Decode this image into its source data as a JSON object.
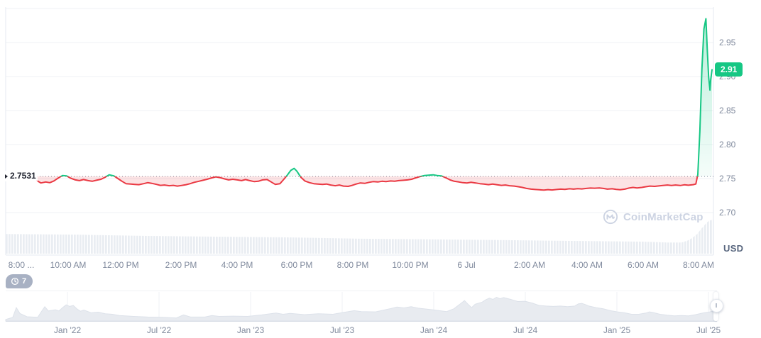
{
  "chart": {
    "unit_label": "USD",
    "watermark_text": "CoinMarketCap",
    "watchers_badge": {
      "count": "7",
      "icon": "history-clock-icon"
    },
    "colors": {
      "up": "#16c784",
      "down": "#ea3943",
      "down_fill_opacity": 0.14,
      "grid": "#eff2f5",
      "border": "#e6e9f0",
      "baseline_dots": "#7d8597",
      "tick_text": "#808a9d",
      "volume_bar": "#e9edf2",
      "nav_fill": "#e8ebf0",
      "nav_edge": "#dde2ea",
      "nav_bottom": "#d7dce5",
      "badge_bg": "#16c784",
      "watch_badge_bg": "#a8b1c3",
      "watermark": "#ccd3e2"
    }
  },
  "chart_data": {
    "type": "area",
    "title": "",
    "main": {
      "baseline_value": 2.7531,
      "baseline_label": "2.7531",
      "current_value": 2.91,
      "current_label": "2.91",
      "y_ticks": [
        "2.95",
        "2.90",
        "2.85",
        "2.80",
        "2.75",
        "2.70"
      ],
      "y_grid_values": [
        3.0,
        2.95,
        2.9,
        2.85,
        2.8,
        2.75,
        2.7
      ],
      "y_range": [
        2.6375,
        3.002
      ],
      "x_ticks": [
        {
          "label": "8:00 ...",
          "f": 0.028
        },
        {
          "label": "10:00 AM",
          "f": 0.09
        },
        {
          "label": "12:00 PM",
          "f": 0.159
        },
        {
          "label": "2:00 PM",
          "f": 0.238
        },
        {
          "label": "4:00 PM",
          "f": 0.312
        },
        {
          "label": "6:00 PM",
          "f": 0.39
        },
        {
          "label": "8:00 PM",
          "f": 0.464
        },
        {
          "label": "10:00 PM",
          "f": 0.539
        },
        {
          "label": "6 Jul",
          "f": 0.613
        },
        {
          "label": "2:00 AM",
          "f": 0.696
        },
        {
          "label": "4:00 AM",
          "f": 0.771
        },
        {
          "label": "6:00 AM",
          "f": 0.845
        },
        {
          "label": "8:00 AM",
          "f": 0.918
        }
      ],
      "series": {
        "name": "price-usd",
        "points": [
          [
            0,
            2.747
          ],
          [
            0.006,
            2.7435
          ],
          [
            0.013,
            2.745
          ],
          [
            0.019,
            2.744
          ],
          [
            0.025,
            2.7465
          ],
          [
            0.032,
            2.751
          ],
          [
            0.038,
            2.7545
          ],
          [
            0.044,
            2.754
          ],
          [
            0.05,
            2.7505
          ],
          [
            0.057,
            2.748
          ],
          [
            0.063,
            2.747
          ],
          [
            0.069,
            2.7485
          ],
          [
            0.076,
            2.747
          ],
          [
            0.082,
            2.746
          ],
          [
            0.088,
            2.7475
          ],
          [
            0.095,
            2.749
          ],
          [
            0.101,
            2.752
          ],
          [
            0.107,
            2.7555
          ],
          [
            0.114,
            2.754
          ],
          [
            0.12,
            2.75
          ],
          [
            0.126,
            2.746
          ],
          [
            0.132,
            2.7425
          ],
          [
            0.139,
            2.742
          ],
          [
            0.145,
            2.7415
          ],
          [
            0.151,
            2.741
          ],
          [
            0.158,
            2.7425
          ],
          [
            0.164,
            2.744
          ],
          [
            0.17,
            2.743
          ],
          [
            0.177,
            2.7415
          ],
          [
            0.183,
            2.74
          ],
          [
            0.189,
            2.7405
          ],
          [
            0.196,
            2.7395
          ],
          [
            0.202,
            2.74
          ],
          [
            0.208,
            2.739
          ],
          [
            0.215,
            2.74
          ],
          [
            0.221,
            2.741
          ],
          [
            0.227,
            2.7425
          ],
          [
            0.233,
            2.7445
          ],
          [
            0.24,
            2.746
          ],
          [
            0.246,
            2.7475
          ],
          [
            0.252,
            2.749
          ],
          [
            0.259,
            2.751
          ],
          [
            0.265,
            2.7525
          ],
          [
            0.271,
            2.7515
          ],
          [
            0.278,
            2.7495
          ],
          [
            0.284,
            2.748
          ],
          [
            0.29,
            2.749
          ],
          [
            0.297,
            2.748
          ],
          [
            0.303,
            2.747
          ],
          [
            0.309,
            2.7485
          ],
          [
            0.315,
            2.747
          ],
          [
            0.322,
            2.7455
          ],
          [
            0.328,
            2.746
          ],
          [
            0.334,
            2.748
          ],
          [
            0.341,
            2.7485
          ],
          [
            0.347,
            2.745
          ],
          [
            0.353,
            2.7415
          ],
          [
            0.36,
            2.7425
          ],
          [
            0.364,
            2.747
          ],
          [
            0.37,
            2.754
          ],
          [
            0.376,
            2.762
          ],
          [
            0.381,
            2.765
          ],
          [
            0.385,
            2.761
          ],
          [
            0.391,
            2.752
          ],
          [
            0.397,
            2.7465
          ],
          [
            0.404,
            2.744
          ],
          [
            0.41,
            2.7425
          ],
          [
            0.416,
            2.742
          ],
          [
            0.423,
            2.7415
          ],
          [
            0.429,
            2.742
          ],
          [
            0.435,
            2.7405
          ],
          [
            0.442,
            2.7395
          ],
          [
            0.448,
            2.7405
          ],
          [
            0.454,
            2.739
          ],
          [
            0.461,
            2.7385
          ],
          [
            0.467,
            2.74
          ],
          [
            0.473,
            2.742
          ],
          [
            0.479,
            2.7435
          ],
          [
            0.486,
            2.743
          ],
          [
            0.492,
            2.7445
          ],
          [
            0.498,
            2.7455
          ],
          [
            0.505,
            2.745
          ],
          [
            0.511,
            2.746
          ],
          [
            0.517,
            2.7455
          ],
          [
            0.524,
            2.7465
          ],
          [
            0.53,
            2.746
          ],
          [
            0.536,
            2.747
          ],
          [
            0.543,
            2.7475
          ],
          [
            0.549,
            2.748
          ],
          [
            0.555,
            2.749
          ],
          [
            0.561,
            2.751
          ],
          [
            0.568,
            2.753
          ],
          [
            0.574,
            2.7545
          ],
          [
            0.58,
            2.755
          ],
          [
            0.587,
            2.7555
          ],
          [
            0.593,
            2.7545
          ],
          [
            0.599,
            2.754
          ],
          [
            0.606,
            2.751
          ],
          [
            0.612,
            2.748
          ],
          [
            0.618,
            2.746
          ],
          [
            0.625,
            2.745
          ],
          [
            0.631,
            2.744
          ],
          [
            0.637,
            2.7435
          ],
          [
            0.643,
            2.7445
          ],
          [
            0.65,
            2.7435
          ],
          [
            0.656,
            2.7425
          ],
          [
            0.662,
            2.742
          ],
          [
            0.669,
            2.741
          ],
          [
            0.675,
            2.742
          ],
          [
            0.681,
            2.741
          ],
          [
            0.688,
            2.74
          ],
          [
            0.694,
            2.7405
          ],
          [
            0.7,
            2.7395
          ],
          [
            0.707,
            2.739
          ],
          [
            0.713,
            2.738
          ],
          [
            0.719,
            2.737
          ],
          [
            0.725,
            2.7355
          ],
          [
            0.732,
            2.7345
          ],
          [
            0.738,
            2.734
          ],
          [
            0.744,
            2.7335
          ],
          [
            0.751,
            2.733
          ],
          [
            0.757,
            2.7338
          ],
          [
            0.763,
            2.7332
          ],
          [
            0.77,
            2.734
          ],
          [
            0.776,
            2.7345
          ],
          [
            0.782,
            2.7342
          ],
          [
            0.789,
            2.735
          ],
          [
            0.795,
            2.7345
          ],
          [
            0.801,
            2.7352
          ],
          [
            0.807,
            2.7348
          ],
          [
            0.814,
            2.7355
          ],
          [
            0.82,
            2.736
          ],
          [
            0.826,
            2.7358
          ],
          [
            0.833,
            2.7362
          ],
          [
            0.839,
            2.7355
          ],
          [
            0.845,
            2.7345
          ],
          [
            0.852,
            2.735
          ],
          [
            0.858,
            2.7342
          ],
          [
            0.864,
            2.7335
          ],
          [
            0.871,
            2.7345
          ],
          [
            0.877,
            2.736
          ],
          [
            0.883,
            2.737
          ],
          [
            0.889,
            2.7362
          ],
          [
            0.896,
            2.737
          ],
          [
            0.902,
            2.738
          ],
          [
            0.908,
            2.739
          ],
          [
            0.915,
            2.7385
          ],
          [
            0.921,
            2.7392
          ],
          [
            0.927,
            2.7398
          ],
          [
            0.934,
            2.7405
          ],
          [
            0.94,
            2.7398
          ],
          [
            0.946,
            2.7405
          ],
          [
            0.953,
            2.7398
          ],
          [
            0.959,
            2.7408
          ],
          [
            0.965,
            2.7402
          ],
          [
            0.972,
            2.741
          ],
          [
            0.976,
            2.742
          ],
          [
            0.979,
            2.756
          ],
          [
            0.982,
            2.82
          ],
          [
            0.985,
            2.91
          ],
          [
            0.988,
            2.97
          ],
          [
            0.991,
            2.985
          ],
          [
            0.993,
            2.94
          ],
          [
            0.995,
            2.9
          ],
          [
            0.997,
            2.88
          ],
          [
            0.998,
            2.895
          ],
          [
            1,
            2.91
          ]
        ]
      },
      "volume_profile": [
        [
          0,
          0.58
        ],
        [
          0.1,
          0.56
        ],
        [
          0.2,
          0.52
        ],
        [
          0.3,
          0.5
        ],
        [
          0.4,
          0.48
        ],
        [
          0.5,
          0.44
        ],
        [
          0.6,
          0.42
        ],
        [
          0.7,
          0.4
        ],
        [
          0.8,
          0.375
        ],
        [
          0.9,
          0.355
        ],
        [
          0.935,
          0.33
        ],
        [
          0.955,
          0.33
        ],
        [
          0.963,
          0.38
        ],
        [
          0.97,
          0.46
        ],
        [
          0.977,
          0.58
        ],
        [
          0.982,
          0.71
        ],
        [
          0.987,
          0.83
        ],
        [
          0.991,
          0.92
        ],
        [
          0.995,
          0.98
        ],
        [
          1,
          1
        ]
      ]
    },
    "navigator": {
      "x_ticks": [
        {
          "label": "Jan '22",
          "f": 0.0886
        },
        {
          "label": "Jul '22",
          "f": 0.209
        },
        {
          "label": "Jan '23",
          "f": 0.329
        },
        {
          "label": "Jul '23",
          "f": 0.45
        },
        {
          "label": "Jan '24",
          "f": 0.57
        },
        {
          "label": "Jul '24",
          "f": 0.69
        },
        {
          "label": "Jan '25",
          "f": 0.811
        },
        {
          "label": "Jul '25",
          "f": 0.931
        }
      ],
      "points": [
        [
          0,
          0.05
        ],
        [
          0.01,
          0.12
        ],
        [
          0.015,
          0.44
        ],
        [
          0.02,
          0.25
        ],
        [
          0.03,
          0.14
        ],
        [
          0.045,
          0.12
        ],
        [
          0.05,
          0.3
        ],
        [
          0.055,
          0.47
        ],
        [
          0.06,
          0.33
        ],
        [
          0.07,
          0.37
        ],
        [
          0.075,
          0.33
        ],
        [
          0.08,
          0.44
        ],
        [
          0.085,
          0.53
        ],
        [
          0.09,
          0.48
        ],
        [
          0.095,
          0.51
        ],
        [
          0.1,
          0.4
        ],
        [
          0.105,
          0.32
        ],
        [
          0.11,
          0.36
        ],
        [
          0.12,
          0.27
        ],
        [
          0.13,
          0.29
        ],
        [
          0.14,
          0.24
        ],
        [
          0.15,
          0.22
        ],
        [
          0.16,
          0.18
        ],
        [
          0.18,
          0.15
        ],
        [
          0.2,
          0.13
        ],
        [
          0.22,
          0.12
        ],
        [
          0.24,
          0.1
        ],
        [
          0.25,
          0.2
        ],
        [
          0.26,
          0.13
        ],
        [
          0.28,
          0.13
        ],
        [
          0.29,
          0.18
        ],
        [
          0.3,
          0.15
        ],
        [
          0.32,
          0.16
        ],
        [
          0.34,
          0.15
        ],
        [
          0.36,
          0.2
        ],
        [
          0.38,
          0.26
        ],
        [
          0.39,
          0.22
        ],
        [
          0.4,
          0.25
        ],
        [
          0.42,
          0.21
        ],
        [
          0.44,
          0.24
        ],
        [
          0.46,
          0.22
        ],
        [
          0.47,
          0.26
        ],
        [
          0.49,
          0.34
        ],
        [
          0.5,
          0.31
        ],
        [
          0.52,
          0.3
        ],
        [
          0.54,
          0.4
        ],
        [
          0.55,
          0.46
        ],
        [
          0.56,
          0.43
        ],
        [
          0.57,
          0.47
        ],
        [
          0.58,
          0.42
        ],
        [
          0.6,
          0.37
        ],
        [
          0.62,
          0.31
        ],
        [
          0.63,
          0.4
        ],
        [
          0.64,
          0.58
        ],
        [
          0.645,
          0.67
        ],
        [
          0.65,
          0.55
        ],
        [
          0.655,
          0.44
        ],
        [
          0.66,
          0.55
        ],
        [
          0.67,
          0.62
        ],
        [
          0.675,
          0.7
        ],
        [
          0.68,
          0.75
        ],
        [
          0.685,
          0.71
        ],
        [
          0.69,
          0.78
        ],
        [
          0.695,
          0.73
        ],
        [
          0.7,
          0.77
        ],
        [
          0.71,
          0.71
        ],
        [
          0.72,
          0.64
        ],
        [
          0.73,
          0.65
        ],
        [
          0.74,
          0.59
        ],
        [
          0.75,
          0.51
        ],
        [
          0.76,
          0.49
        ],
        [
          0.77,
          0.48
        ],
        [
          0.78,
          0.49
        ],
        [
          0.79,
          0.47
        ],
        [
          0.8,
          0.49
        ],
        [
          0.805,
          0.56
        ],
        [
          0.81,
          0.58
        ],
        [
          0.815,
          0.54
        ],
        [
          0.82,
          0.49
        ],
        [
          0.83,
          0.44
        ],
        [
          0.84,
          0.4
        ],
        [
          0.85,
          0.34
        ],
        [
          0.86,
          0.3
        ],
        [
          0.87,
          0.27
        ],
        [
          0.88,
          0.22
        ],
        [
          0.89,
          0.22
        ],
        [
          0.9,
          0.26
        ],
        [
          0.905,
          0.3
        ],
        [
          0.91,
          0.28
        ],
        [
          0.92,
          0.22
        ],
        [
          0.93,
          0.19
        ],
        [
          0.94,
          0.17
        ],
        [
          0.95,
          0.18
        ],
        [
          0.96,
          0.17
        ],
        [
          0.97,
          0.21
        ],
        [
          0.98,
          0.26
        ],
        [
          0.99,
          0.3
        ],
        [
          1,
          0.36
        ]
      ]
    }
  }
}
